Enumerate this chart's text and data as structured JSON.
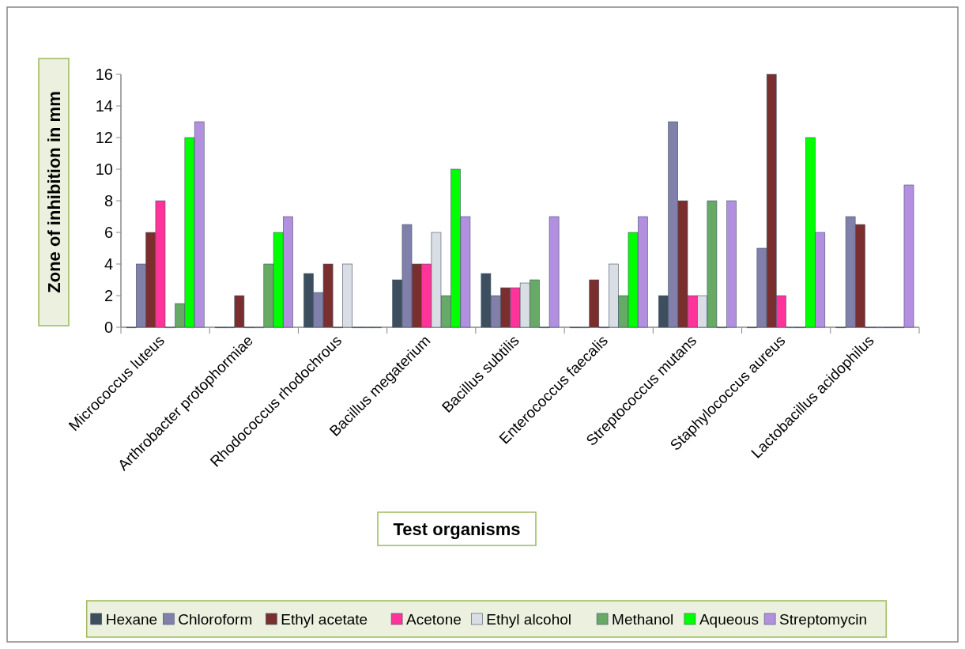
{
  "chart_data": {
    "type": "bar",
    "xlabel": "Test organisms",
    "ylabel": "Zone of inhibition in mm",
    "categories": [
      "Micrococcus luteus",
      "Arthrobacter protophormiae",
      "Rhodococcus rhodochrous",
      "Bacillus megaterium",
      "Bacillus subtilis",
      "Enterococcus faecalis",
      "Streptococcus mutans",
      "Staphylococcus aureus",
      "Lactobacillus acidophilus"
    ],
    "series": [
      {
        "name": "Hexane",
        "color": "#3d4f5f",
        "values": [
          0,
          0,
          3.4,
          3,
          3.4,
          0,
          2,
          0,
          0
        ]
      },
      {
        "name": "Chloroform",
        "color": "#8080aa",
        "values": [
          4,
          0,
          2.2,
          6.5,
          2,
          0,
          13,
          5,
          7
        ]
      },
      {
        "name": "Ethyl acetate",
        "color": "#7b2e2e",
        "values": [
          6,
          2,
          4,
          4,
          2.5,
          3,
          8,
          16,
          6.5
        ]
      },
      {
        "name": "Acetone",
        "color": "#ff3399",
        "values": [
          8,
          0,
          0,
          4,
          2.5,
          0,
          2,
          2,
          0
        ]
      },
      {
        "name": "Ethyl alcohol",
        "color": "#d9dde4",
        "values": [
          0,
          0,
          4,
          6,
          2.8,
          4,
          2,
          0,
          0
        ]
      },
      {
        "name": "Methanol",
        "color": "#66aa66",
        "values": [
          1.5,
          4,
          0,
          2,
          3,
          2,
          8,
          0,
          0
        ]
      },
      {
        "name": "Aqueous",
        "color": "#00ff00",
        "values": [
          12,
          6,
          0,
          10,
          0,
          6,
          0,
          12,
          0
        ]
      },
      {
        "name": "Streptomycin",
        "color": "#b38fdf",
        "values": [
          13,
          7,
          0,
          7,
          7,
          7,
          8,
          6,
          9
        ]
      }
    ],
    "ylim": [
      0,
      16
    ],
    "yticks": [
      0,
      2,
      4,
      6,
      8,
      10,
      12,
      14,
      16
    ],
    "grid": false,
    "legend": "bottom"
  }
}
